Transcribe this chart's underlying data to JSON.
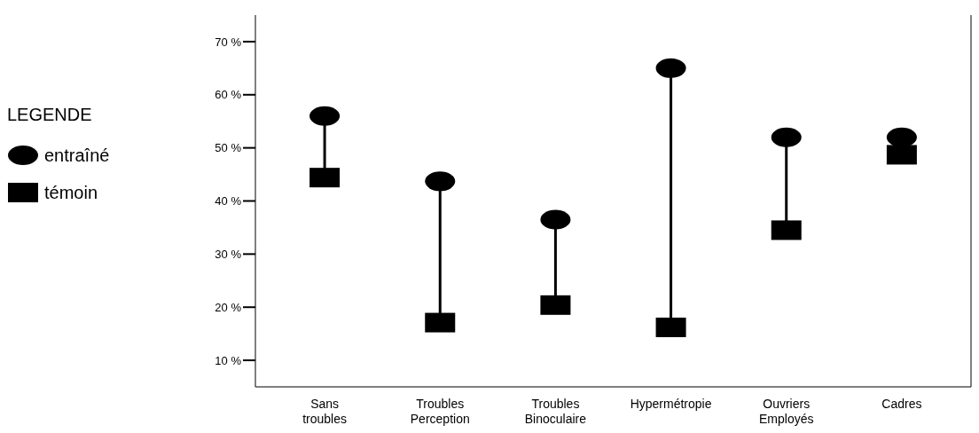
{
  "chart_data": {
    "type": "scatter",
    "legend_title": "LEGENDE",
    "legend": "left",
    "categories": [
      "Sans troubles",
      "Troubles Perception",
      "Troubles Binoculaire",
      "Hypermétropie",
      "Ouvriers Employés",
      "Cadres"
    ],
    "series": [
      {
        "name": "entraîné",
        "color": "#000000",
        "marker": "circle",
        "values": [
          56,
          43.7,
          36.5,
          65,
          52,
          52
        ]
      },
      {
        "name": "témoin",
        "color": "#000000",
        "marker": "square",
        "values": [
          44.4,
          17.1,
          20.4,
          16.2,
          34.5,
          48.7
        ]
      }
    ],
    "ylim": [
      5,
      75
    ],
    "yticks": [
      {
        "value": 10,
        "label": "10 %"
      },
      {
        "value": 20,
        "label": "20 %"
      },
      {
        "value": 30,
        "label": "30 %"
      },
      {
        "value": 40,
        "label": "40 %"
      },
      {
        "value": 50,
        "label": "50 %"
      },
      {
        "value": 60,
        "label": "60 %"
      },
      {
        "value": 70,
        "label": "70 %"
      }
    ],
    "grid": false
  }
}
